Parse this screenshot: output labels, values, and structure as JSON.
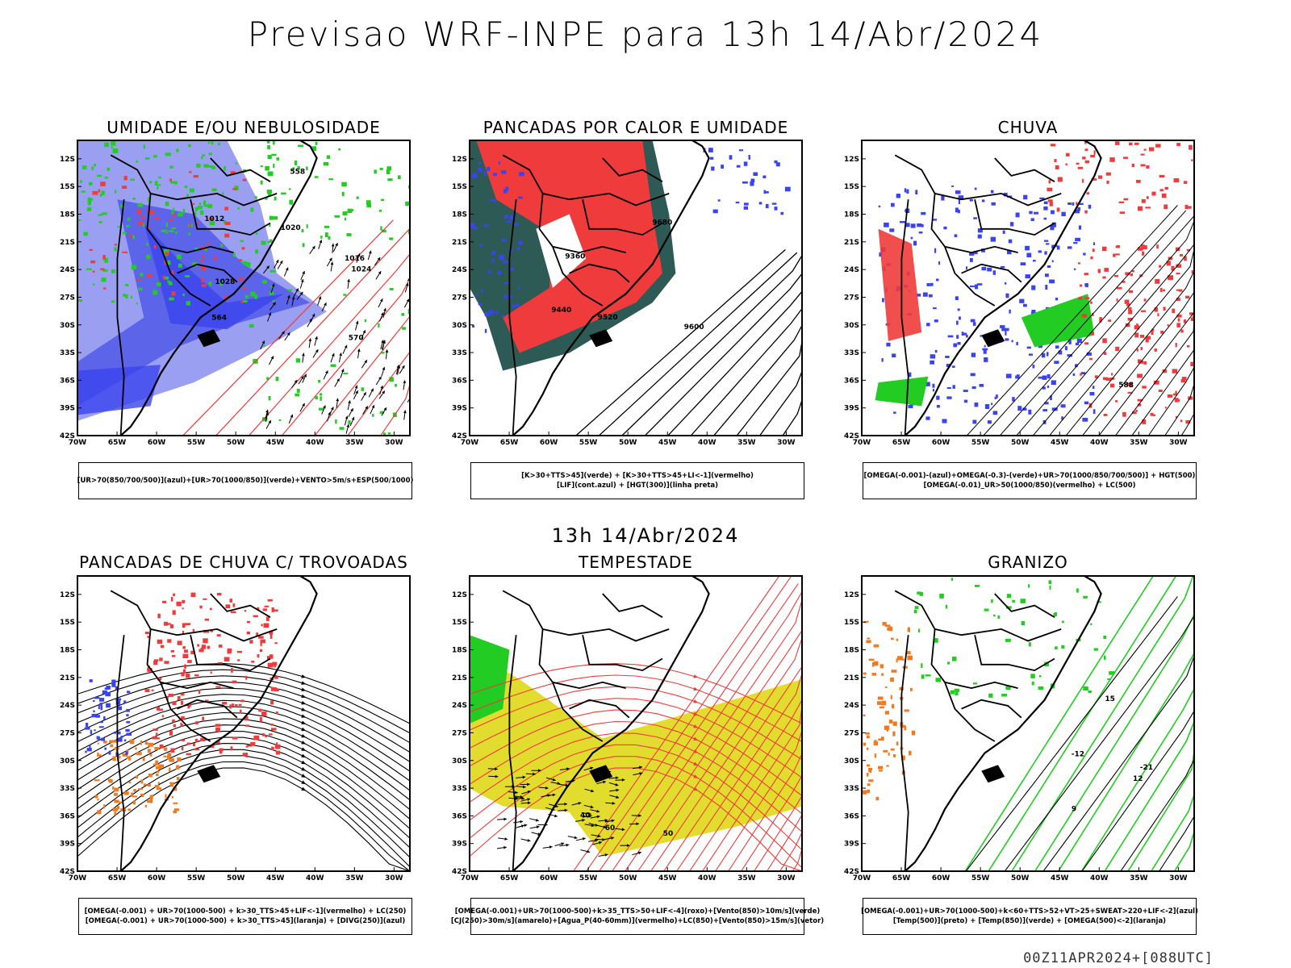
{
  "title": "Previsao WRF-INPE  para 13h 14/Abr/2024",
  "mid_title": "13h 14/Abr/2024",
  "footer": "00Z11APR2024+[088UTC]",
  "colors": {
    "blue": "#3a44ee",
    "light_blue": "#9a9ff2",
    "medium_blue": "#5c64ea",
    "green": "#22cc22",
    "red": "#ef3b3b",
    "dark_teal": "#2e5a55",
    "orange": "#f07a22",
    "yellow": "#e2dc2e",
    "black": "#000000"
  },
  "chart_data": [
    {
      "type": "heatmap",
      "title": "UMIDADE E/OU NEBULOSIDADE",
      "legend": [
        "[UR>70(850/700/500)](azul)+[UR>70(1000/850)](verde)+VENTO>5m/s+ESP(500/1000)"
      ],
      "x_ticks": [
        "70W",
        "65W",
        "60W",
        "55W",
        "50W",
        "45W",
        "40W",
        "35W",
        "30W"
      ],
      "y_ticks": [
        "12S",
        "15S",
        "18S",
        "21S",
        "24S",
        "27S",
        "30S",
        "33S",
        "36S",
        "39S",
        "42S"
      ],
      "xlim": [
        -70,
        -28
      ],
      "ylim": [
        -42,
        -10
      ],
      "contour_labels": [
        "1012",
        "1016",
        "1020",
        "1024",
        "1028",
        "570",
        "564",
        "558"
      ]
    },
    {
      "type": "heatmap",
      "title": "PANCADAS POR CALOR E UMIDADE",
      "legend": [
        "[K>30+TTS>45](verde) + [K>30+TTS>45+LI<-1](vermelho)",
        "[LIF](cont.azul) + [HGT(300)](linha preta)"
      ],
      "x_ticks": [
        "70W",
        "65W",
        "60W",
        "55W",
        "50W",
        "45W",
        "40W",
        "35W",
        "30W"
      ],
      "y_ticks": [
        "12S",
        "15S",
        "18S",
        "21S",
        "24S",
        "27S",
        "30S",
        "33S",
        "36S",
        "39S",
        "42S"
      ],
      "xlim": [
        -70,
        -28
      ],
      "ylim": [
        -42,
        -10
      ],
      "contour_labels": [
        "9680",
        "9600",
        "9520",
        "9440",
        "9360"
      ]
    },
    {
      "type": "heatmap",
      "title": "CHUVA",
      "legend": [
        "[OMEGA(-0.001)-(azul)+OMEGA(-0.3)-(verde)+UR>70(1000/850/700/500)] + HGT(500)",
        "[OMEGA(-0.01)_UR>50(1000/850)(vermelho) + LC(500)"
      ],
      "x_ticks": [
        "70W",
        "65W",
        "60W",
        "55W",
        "50W",
        "45W",
        "40W",
        "35W",
        "30W"
      ],
      "y_ticks": [
        "12S",
        "15S",
        "18S",
        "21S",
        "24S",
        "27S",
        "30S",
        "33S",
        "36S",
        "39S",
        "42S"
      ],
      "xlim": [
        -70,
        -28
      ],
      "ylim": [
        -42,
        -10
      ],
      "contour_labels": [
        "588"
      ]
    },
    {
      "type": "heatmap",
      "title": "PANCADAS DE CHUVA C/ TROVOADAS",
      "legend": [
        "[OMEGA(-0.001) + UR>70(1000-500) + k>30_TTS>45+LIF<-1](vermelho) + LC(250)",
        "[OMEGA(-0.001) + UR>70(1000-500) + k>30_TTS>45](laranja) + [DIVG(250)](azul)"
      ],
      "x_ticks": [
        "70W",
        "65W",
        "60W",
        "55W",
        "50W",
        "45W",
        "40W",
        "35W",
        "30W"
      ],
      "y_ticks": [
        "12S",
        "15S",
        "18S",
        "21S",
        "24S",
        "27S",
        "30S",
        "33S",
        "36S",
        "39S",
        "42S"
      ],
      "xlim": [
        -70,
        -28
      ],
      "ylim": [
        -42,
        -10
      ]
    },
    {
      "type": "heatmap",
      "title": "TEMPESTADE",
      "legend": [
        "[OMEGA(-0.001)+UR>70(1000-500)+k>35_TTS>50+LIF<-4](roxo)+[Vento(850)>10m/s](verde)",
        "[CJ(250)>30m/s](amarelo)+[Agua_P(40-60mm)](vermelho)+LC(850)+[Vento(850)>15m/s](vetor)"
      ],
      "x_ticks": [
        "70W",
        "65W",
        "60W",
        "55W",
        "50W",
        "45W",
        "40W",
        "35W",
        "30W"
      ],
      "y_ticks": [
        "12S",
        "15S",
        "18S",
        "21S",
        "24S",
        "27S",
        "30S",
        "33S",
        "36S",
        "39S",
        "42S"
      ],
      "xlim": [
        -70,
        -28
      ],
      "ylim": [
        -42,
        -10
      ],
      "contour_labels": [
        "60",
        "50",
        "40"
      ]
    },
    {
      "type": "heatmap",
      "title": "GRANIZO",
      "legend": [
        "[OMEGA(-0.001)+UR>70(1000-500)+k<60+TTS>52+VT>25+SWEAT>220+LIF<-2](azul)",
        "[Temp(500)](preto) + [Temp(850)](verde) + [OMEGA(500)<-2](laranja)"
      ],
      "x_ticks": [
        "70W",
        "65W",
        "60W",
        "55W",
        "50W",
        "45W",
        "40W",
        "35W",
        "30W"
      ],
      "y_ticks": [
        "12S",
        "15S",
        "18S",
        "21S",
        "24S",
        "27S",
        "30S",
        "33S",
        "36S",
        "39S",
        "42S"
      ],
      "xlim": [
        -70,
        -28
      ],
      "ylim": [
        -42,
        -10
      ],
      "contour_labels": [
        "-12",
        "-21",
        "15",
        "12",
        "9"
      ]
    }
  ]
}
